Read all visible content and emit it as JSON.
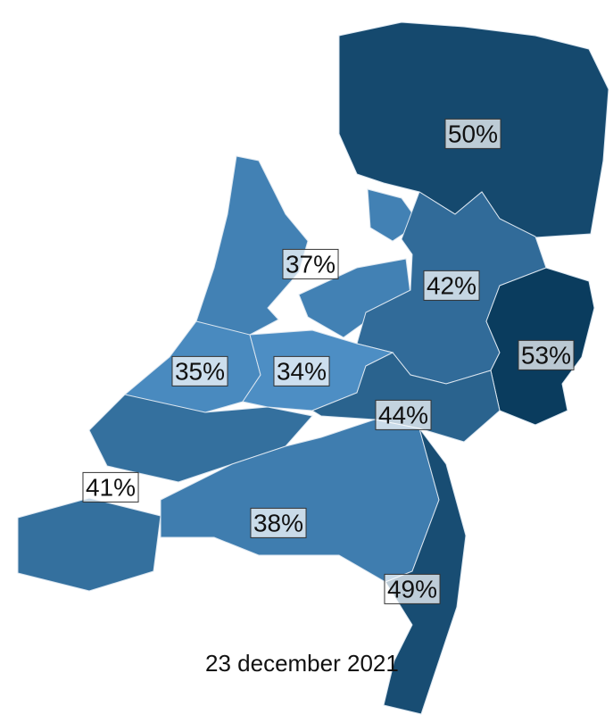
{
  "regions": [
    {
      "value": 50,
      "label": "50%"
    },
    {
      "value": 37,
      "label": "37%"
    },
    {
      "value": 42,
      "label": "42%"
    },
    {
      "value": 53,
      "label": "53%"
    },
    {
      "value": 35,
      "label": "35%"
    },
    {
      "value": 34,
      "label": "34%"
    },
    {
      "value": 44,
      "label": "44%"
    },
    {
      "value": 41,
      "label": "41%"
    },
    {
      "value": 38,
      "label": "38%"
    },
    {
      "value": 49,
      "label": "49%"
    }
  ],
  "date": "23 december 2021"
}
